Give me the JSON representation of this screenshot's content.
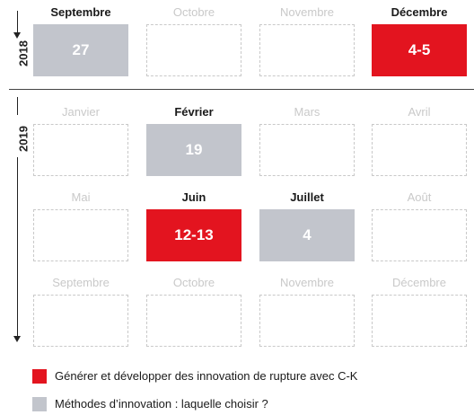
{
  "years": [
    "2018",
    "2019"
  ],
  "rows": [
    [
      {
        "month": "Septembre",
        "value": "27",
        "kind": "grey"
      },
      {
        "month": "Octobre",
        "value": "",
        "kind": "empty"
      },
      {
        "month": "Novembre",
        "value": "",
        "kind": "empty"
      },
      {
        "month": "Décembre",
        "value": "4-5",
        "kind": "red"
      }
    ],
    [
      {
        "month": "Janvier",
        "value": "",
        "kind": "empty"
      },
      {
        "month": "Février",
        "value": "19",
        "kind": "grey"
      },
      {
        "month": "Mars",
        "value": "",
        "kind": "empty"
      },
      {
        "month": "Avril",
        "value": "",
        "kind": "empty"
      }
    ],
    [
      {
        "month": "Mai",
        "value": "",
        "kind": "empty"
      },
      {
        "month": "Juin",
        "value": "12-13",
        "kind": "red"
      },
      {
        "month": "Juillet",
        "value": "4",
        "kind": "grey"
      },
      {
        "month": "Août",
        "value": "",
        "kind": "empty"
      }
    ],
    [
      {
        "month": "Septembre",
        "value": "",
        "kind": "empty"
      },
      {
        "month": "Octobre",
        "value": "",
        "kind": "empty"
      },
      {
        "month": "Novembre",
        "value": "",
        "kind": "empty"
      },
      {
        "month": "Décembre",
        "value": "",
        "kind": "empty"
      }
    ]
  ],
  "legend": [
    {
      "label": "Générer et développer des innovation de rupture avec C-K",
      "color": "#e3141f"
    },
    {
      "label": "Méthodes d’innovation : laquelle choisir ?",
      "color": "#c2c5cc"
    }
  ]
}
